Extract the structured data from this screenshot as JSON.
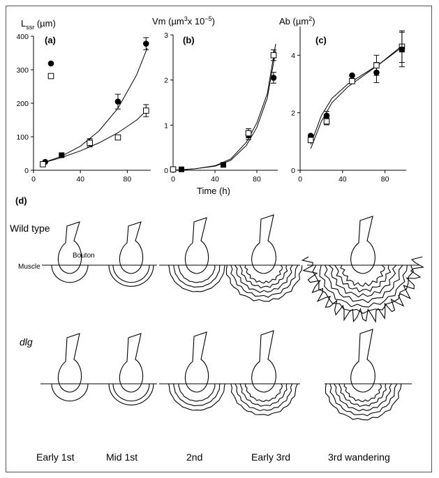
{
  "chart_data": [
    {
      "type": "scatter",
      "panel_label": "(a)",
      "ylabel": "Lssr (µm)",
      "ylabel_main": "L",
      "ylabel_sub": "ssr",
      "ylabel_unit": " (µm)",
      "xlim": [
        0,
        100
      ],
      "ylim": [
        0,
        400
      ],
      "xticks": [
        0,
        40,
        80
      ],
      "yticks": [
        0,
        100,
        200,
        300,
        400
      ],
      "legend": [
        "filled-circle",
        "open-square"
      ],
      "series": [
        {
          "marker": "filled-circle",
          "x": [
            10,
            48,
            72,
            96
          ],
          "y": [
            25,
            82,
            205,
            378
          ],
          "err": [
            0,
            12,
            22,
            18
          ],
          "fit": {
            "x": [
              8,
              24,
              40,
              56,
              72,
              88,
              97
            ],
            "y": [
              22,
              42,
              72,
              118,
              185,
              285,
              365
            ]
          }
        },
        {
          "marker": "open-square",
          "x": [
            8,
            48,
            72,
            96
          ],
          "y": [
            18,
            82,
            98,
            178
          ],
          "err": [
            0,
            12,
            0,
            18
          ],
          "fit": {
            "x": [
              8,
              24,
              40,
              56,
              72,
              88,
              97
            ],
            "y": [
              22,
              38,
              58,
              82,
              112,
              150,
              180
            ]
          }
        },
        {
          "marker": "filled-square",
          "x": [
            24
          ],
          "y": [
            45
          ],
          "err": [
            0
          ]
        }
      ]
    },
    {
      "type": "scatter",
      "panel_label": "(b)",
      "ylabel_main": "Vm (µm",
      "ylabel_sup": "3",
      "ylabel_mid": "x 10",
      "ylabel_sup2": "−5",
      "ylabel_end": ")",
      "xlabel": "Time (h)",
      "xlim": [
        0,
        100
      ],
      "ylim": [
        0,
        3
      ],
      "xticks": [
        0,
        40,
        80
      ],
      "yticks": [
        0,
        1,
        2,
        3
      ],
      "series": [
        {
          "marker": "filled-circle",
          "x": [
            72,
            96
          ],
          "y": [
            0.78,
            2.05
          ],
          "err": [
            0.1,
            0.12
          ],
          "fit": {
            "x": [
              0,
              20,
              40,
              55,
              70,
              80,
              90,
              98
            ],
            "y": [
              0,
              0.03,
              0.1,
              0.25,
              0.62,
              1.05,
              1.7,
              2.8
            ]
          }
        },
        {
          "marker": "open-square",
          "x": [
            0,
            72,
            96
          ],
          "y": [
            0.02,
            0.82,
            2.55
          ],
          "err": [
            0,
            0.1,
            0.12
          ],
          "fit": {
            "x": [
              0,
              20,
              40,
              55,
              70,
              80,
              90,
              98
            ],
            "y": [
              0,
              0.03,
              0.09,
              0.22,
              0.55,
              0.95,
              1.6,
              2.65
            ]
          }
        },
        {
          "marker": "filled-square",
          "x": [
            8,
            48
          ],
          "y": [
            0.02,
            0.12
          ],
          "err": [
            0,
            0
          ]
        }
      ]
    },
    {
      "type": "scatter",
      "panel_label": "(c)",
      "ylabel_main": "Ab (µm",
      "ylabel_sup": "2",
      "ylabel_end": ")",
      "xlim": [
        0,
        100
      ],
      "ylim": [
        0,
        5
      ],
      "xticks": [
        0,
        40,
        80
      ],
      "yticks": [
        0,
        2,
        4
      ],
      "series": [
        {
          "marker": "filled-circle",
          "x": [
            10,
            25,
            49,
            72
          ],
          "y": [
            1.2,
            1.9,
            3.3,
            3.4
          ],
          "err": [
            0,
            0.15,
            0,
            0.35
          ],
          "fit": {
            "x": [
              10,
              20,
              30,
              45,
              60,
              75,
              95
            ],
            "y": [
              0.9,
              1.9,
              2.5,
              3.0,
              3.35,
              3.7,
              4.25
            ]
          }
        },
        {
          "marker": "open-square",
          "x": [
            10,
            25,
            49,
            72,
            96
          ],
          "y": [
            1.05,
            1.7,
            3.1,
            3.65,
            4.3
          ],
          "err": [
            0,
            0.12,
            0,
            0.35,
            0.55
          ],
          "fit": {
            "x": [
              10,
              20,
              30,
              45,
              60,
              75,
              95
            ],
            "y": [
              0.75,
              1.7,
              2.35,
              2.9,
              3.3,
              3.7,
              4.3
            ]
          }
        },
        {
          "marker": "filled-square",
          "x": [
            96
          ],
          "y": [
            4.2
          ],
          "err": [
            0.6
          ]
        }
      ]
    }
  ],
  "panel_d": {
    "label": "(d)",
    "row_wild": "Wild type",
    "row_dlg": "dlg",
    "muscle_label": "Muscle",
    "bouton_label": "Bouton",
    "stages": [
      "Early 1st",
      "Mid 1st",
      "2nd",
      "Early 3rd",
      "3rd wandering"
    ]
  }
}
